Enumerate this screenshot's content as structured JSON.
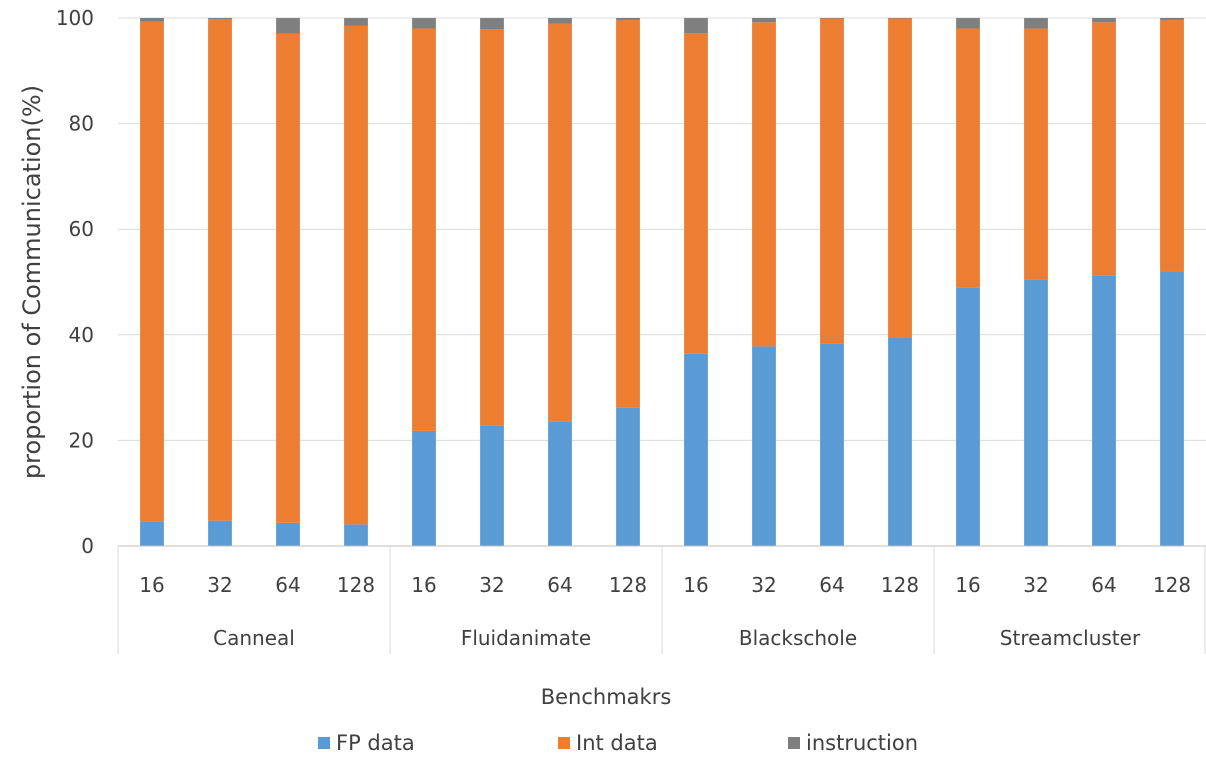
{
  "chart_data": {
    "type": "bar",
    "stacked": true,
    "xlabel": "Benchmakrs",
    "ylabel": "proportion of Communication(%)",
    "ylim": [
      0,
      100
    ],
    "y_ticks": [
      0,
      20,
      40,
      60,
      80,
      100
    ],
    "grid": true,
    "legend_position": "bottom",
    "groups": [
      {
        "name": "Canneal",
        "categories": [
          "16",
          "32",
          "64",
          "128"
        ]
      },
      {
        "name": "Fluidanimate",
        "categories": [
          "16",
          "32",
          "64",
          "128"
        ]
      },
      {
        "name": "Blackschole",
        "categories": [
          "16",
          "32",
          "64",
          "128"
        ]
      },
      {
        "name": "Streamcluster",
        "categories": [
          "16",
          "32",
          "64",
          "128"
        ]
      }
    ],
    "series": [
      {
        "name": "FP data",
        "color": "#5B9BD5",
        "values": [
          4.7,
          4.8,
          4.4,
          4.1,
          21.8,
          22.8,
          23.5,
          26.2,
          36.4,
          37.8,
          38.4,
          39.5,
          49.0,
          50.5,
          51.2,
          52.0
        ]
      },
      {
        "name": "Int data",
        "color": "#ED7D31",
        "values": [
          94.6,
          95.0,
          92.6,
          94.4,
          76.2,
          75.1,
          75.4,
          73.4,
          60.7,
          61.4,
          61.5,
          60.4,
          49.0,
          47.5,
          48.0,
          47.6
        ]
      },
      {
        "name": "instruction",
        "color": "#7F7F7F",
        "values": [
          0.7,
          0.2,
          3.0,
          1.5,
          2.0,
          2.1,
          1.1,
          0.4,
          2.9,
          0.8,
          0.1,
          0.1,
          2.0,
          2.0,
          0.8,
          0.4
        ]
      }
    ]
  }
}
